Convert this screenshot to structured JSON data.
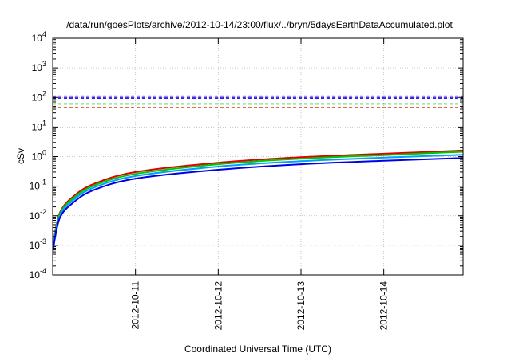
{
  "chart_data": {
    "type": "line",
    "title": "/data/run/goesPlots/archive/2012-10-14/23:00/flux/../bryn/5daysEarthDataAccumulated.plot",
    "xlabel": "Coordinated Universal Time (UTC)",
    "ylabel": "cSv",
    "yscale": "log",
    "ylim": [
      0.0001,
      10000
    ],
    "xlim": [
      "2012-10-10T00:00",
      "2012-10-14T23:00"
    ],
    "x_ticks": [
      "2012-10-11",
      "2012-10-12",
      "2012-10-13",
      "2012-10-14"
    ],
    "y_ticks": [
      {
        "base": "10",
        "exp": "-4"
      },
      {
        "base": "10",
        "exp": "-3"
      },
      {
        "base": "10",
        "exp": "-2"
      },
      {
        "base": "10",
        "exp": "-1"
      },
      {
        "base": "10",
        "exp": "0"
      },
      {
        "base": "10",
        "exp": "1"
      },
      {
        "base": "10",
        "exp": "2"
      },
      {
        "base": "10",
        "exp": "3"
      },
      {
        "base": "10",
        "exp": "4"
      }
    ],
    "grid": true,
    "legend": "none",
    "reference_lines": [
      {
        "color": "#7a00c8",
        "style": "dashed",
        "y": 110
      },
      {
        "color": "#0000ff",
        "style": "dashed",
        "y": 95
      },
      {
        "color": "#00c800",
        "style": "dashed",
        "y": 60
      },
      {
        "color": "#e00000",
        "style": "dashed",
        "y": 45
      }
    ],
    "series": [
      {
        "color": "#e00000",
        "x": [
          "2012-10-10T00:00",
          "2012-10-10T02:00",
          "2012-10-10T06:00",
          "2012-10-10T12:00",
          "2012-10-11T00:00",
          "2012-10-12T00:00",
          "2012-10-13T00:00",
          "2012-10-14T00:00",
          "2012-10-14T23:00"
        ],
        "y": [
          0.0009,
          0.012,
          0.045,
          0.12,
          0.3,
          0.62,
          0.95,
          1.25,
          1.6
        ]
      },
      {
        "color": "#00c800",
        "x": [
          "2012-10-10T00:00",
          "2012-10-10T02:00",
          "2012-10-10T06:00",
          "2012-10-10T12:00",
          "2012-10-11T00:00",
          "2012-10-12T00:00",
          "2012-10-13T00:00",
          "2012-10-14T00:00",
          "2012-10-14T23:00"
        ],
        "y": [
          0.0008,
          0.011,
          0.04,
          0.105,
          0.26,
          0.55,
          0.85,
          1.12,
          1.45
        ]
      },
      {
        "color": "#00a0ff",
        "x": [
          "2012-10-10T00:00",
          "2012-10-10T02:00",
          "2012-10-10T06:00",
          "2012-10-10T12:00",
          "2012-10-11T00:00",
          "2012-10-12T00:00",
          "2012-10-13T00:00",
          "2012-10-14T00:00",
          "2012-10-14T23:00"
        ],
        "y": [
          0.0007,
          0.0095,
          0.034,
          0.09,
          0.22,
          0.46,
          0.7,
          0.92,
          1.15
        ]
      },
      {
        "color": "#0000e6",
        "x": [
          "2012-10-10T00:00",
          "2012-10-10T02:00",
          "2012-10-10T06:00",
          "2012-10-10T12:00",
          "2012-10-11T00:00",
          "2012-10-12T00:00",
          "2012-10-13T00:00",
          "2012-10-14T00:00",
          "2012-10-14T23:00"
        ],
        "y": [
          0.0006,
          0.008,
          0.028,
          0.075,
          0.18,
          0.36,
          0.55,
          0.72,
          0.9
        ]
      }
    ]
  }
}
